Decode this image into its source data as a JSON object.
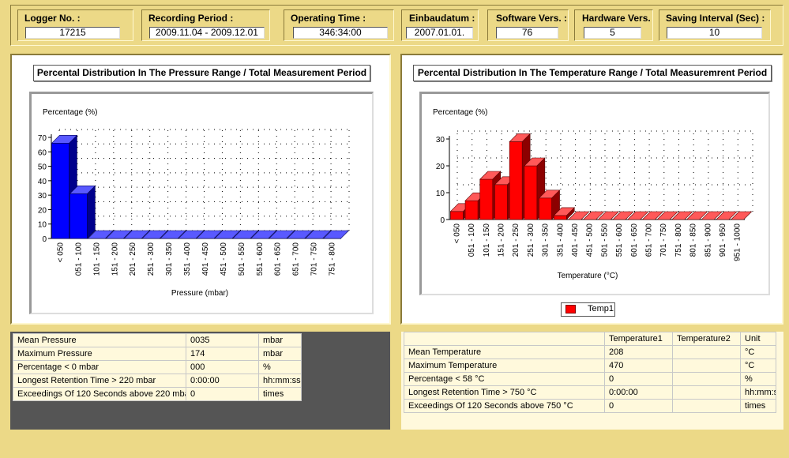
{
  "header": {
    "logger_no": {
      "label": "Logger No. :",
      "value": "17215"
    },
    "recording_period": {
      "label": "Recording Period :",
      "value": "2009.11.04 - 2009.12.01"
    },
    "operating_time": {
      "label": "Operating Time :",
      "value": "346:34:00"
    },
    "einbaudatum": {
      "label": "Einbaudatum :",
      "value": "2007.01.01."
    },
    "software_vers": {
      "label": "Software Vers. :",
      "value": "76"
    },
    "hardware_vers": {
      "label": "Hardware Vers.",
      "value": "5"
    },
    "saving_interval": {
      "label": "Saving Interval (Sec) :",
      "value": "10"
    }
  },
  "pressure_chart": {
    "title": "Percental Distribution In The Pressure Range / Total Measurement Period",
    "chart_data": {
      "type": "bar",
      "ylabel": "Percentage (%)",
      "xlabel": "Pressure (mbar)",
      "ylim": [
        0,
        70
      ],
      "yticks": [
        "0",
        "10",
        "20",
        "30",
        "40",
        "50",
        "60",
        "70"
      ],
      "categories": [
        "< 050",
        "051 - 100",
        "101 - 150",
        "151 - 200",
        "201 - 250",
        "251 - 300",
        "301 - 350",
        "351 - 400",
        "401 - 450",
        "451 - 500",
        "501 - 550",
        "551 - 600",
        "601 - 650",
        "651 - 700",
        "701 - 750",
        "751 - 800"
      ],
      "values": [
        66,
        31,
        0,
        0,
        0,
        0,
        0,
        0,
        0,
        0,
        0,
        0,
        0,
        0,
        0,
        0
      ],
      "color": "#0000ff",
      "grid": true
    }
  },
  "temperature_chart": {
    "title": "Percental Distribution In The Temperature Range / Total Measuremrent Period",
    "chart_data": {
      "type": "bar",
      "ylabel": "Percentage (%)",
      "xlabel": "Temperature (°C)",
      "ylim": [
        0,
        30
      ],
      "yticks": [
        "0",
        "10",
        "20",
        "30"
      ],
      "categories": [
        "< 050",
        "051 - 100",
        "101 - 150",
        "151 - 200",
        "201 - 250",
        "251 - 300",
        "301 - 350",
        "351 - 400",
        "401 - 450",
        "451 - 500",
        "501 - 550",
        "551 - 600",
        "601 - 650",
        "651 - 700",
        "701 - 750",
        "751 - 800",
        "801 - 850",
        "851 - 900",
        "901 - 950",
        "951 - 1000"
      ],
      "values": [
        3,
        7,
        15,
        13,
        29,
        20,
        8,
        1.5,
        0,
        0,
        0,
        0,
        0,
        0,
        0,
        0,
        0,
        0,
        0,
        0
      ],
      "color": "#ff0000",
      "grid": true,
      "legend": [
        "Temp1"
      ],
      "legend_position": "bottom"
    }
  },
  "pressure_table": {
    "rows": [
      [
        "Mean Pressure",
        "0035",
        "mbar"
      ],
      [
        "Maximum Pressure",
        "174",
        "mbar"
      ],
      [
        "Percentage < 0 mbar",
        "000",
        "%"
      ],
      [
        "Longest Retention Time > 220 mbar",
        "0:00:00",
        "hh:mm:ss"
      ],
      [
        "Exceedings Of 120 Seconds above 220 mba",
        "0",
        "times"
      ]
    ]
  },
  "temperature_table": {
    "headers": [
      "",
      "Temperature1",
      "Temperature2",
      "Unit"
    ],
    "rows": [
      [
        "Mean Temperature",
        "208",
        "",
        "°C"
      ],
      [
        "Maximum Temperature",
        "470",
        "",
        "°C"
      ],
      [
        "Percentage < 58 °C",
        "0",
        "",
        "%"
      ],
      [
        "Longest Retention Time > 750 °C",
        "0:00:00",
        "",
        "hh:mm:s"
      ],
      [
        "Exceedings Of 120 Seconds above 750 °C",
        "0",
        "",
        "times"
      ]
    ]
  }
}
